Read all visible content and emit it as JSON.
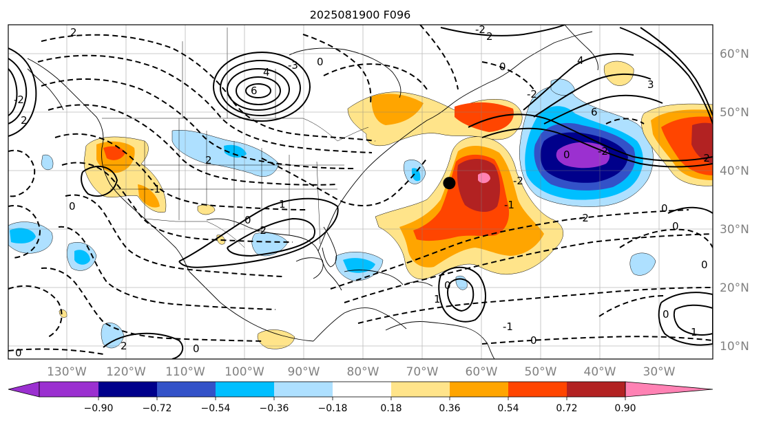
{
  "title": "2025081900 F096",
  "lon_labels": [
    "130°W",
    "120°W",
    "110°W",
    "100°W",
    "90°W",
    "80°W",
    "70°W",
    "60°W",
    "50°W",
    "40°W",
    "30°W"
  ],
  "lat_labels": [
    "60°N",
    "50°N",
    "40°N",
    "30°N",
    "20°N",
    "10°N"
  ],
  "colorbar": {
    "tick_labels": [
      "−0.90",
      "−0.72",
      "−0.54",
      "−0.36",
      "−0.18",
      "0.18",
      "0.36",
      "0.54",
      "0.72",
      "0.90"
    ],
    "colors": {
      "under": "#9b30d0",
      "bins": [
        "#9b30d0",
        "#00008b",
        "#3352c8",
        "#00bfff",
        "#aee0ff",
        "#ffffff",
        "#ffe48a",
        "#ffa500",
        "#ff4500",
        "#b22222"
      ],
      "over": "#ff82b4"
    }
  },
  "contour_labels": [
    "2",
    "-2",
    "2",
    "4",
    "6",
    "-3",
    "0",
    "-2",
    "0",
    "2",
    "-2",
    "4",
    "6",
    "3",
    "0",
    "-2",
    "-1",
    "0",
    "2",
    "0",
    "1",
    "-2",
    "-1",
    "-2",
    "0",
    "0",
    "0",
    "-2",
    "1",
    "0",
    "0",
    "1",
    "0",
    "-1",
    "0",
    "0",
    "2",
    "-2"
  ],
  "marker": {
    "label": "black dot",
    "lon": -65.5,
    "lat": 38
  },
  "chart_data": {
    "type": "contour-map",
    "title": "2025081900 F096",
    "projection": "PlateCarree",
    "lon_range": [
      -140,
      -21
    ],
    "lat_range": [
      8,
      65
    ],
    "fill_levels": [
      -0.9,
      -0.72,
      -0.54,
      -0.36,
      -0.18,
      0.18,
      0.36,
      0.54,
      0.72,
      0.9
    ],
    "colorbar_extend": "both",
    "contour_style": "solid positive, dashed negative, black",
    "positive_anomalies": [
      {
        "name": "western-atlantic max",
        "lon": -62,
        "lat": 38,
        "value": ">0.90"
      },
      {
        "name": "east-atlantic max",
        "lon": -24,
        "lat": 43,
        "value": "0.72-0.90"
      },
      {
        "name": "newfoundland band",
        "lon": -57,
        "lat": 48,
        "value": "0.54-0.90"
      },
      {
        "name": "us southwest",
        "lon": -118,
        "lat": 40,
        "value": "0.36-0.72"
      },
      {
        "name": "great lakes band",
        "lon": -83,
        "lat": 48,
        "value": "0.18-0.54"
      },
      {
        "name": "subtropical tongue",
        "lon": -60,
        "lat": 28,
        "value": "0.18-0.72"
      }
    ],
    "negative_anomalies": [
      {
        "name": "central atlantic min",
        "lon": -43,
        "lat": 41,
        "value": "<-0.90"
      },
      {
        "name": "pacific",
        "lon": -137,
        "lat": 31,
        "value": "-0.36 to -0.54"
      },
      {
        "name": "bahamas",
        "lon": -77,
        "lat": 24,
        "value": "-0.36 to -0.54"
      },
      {
        "name": "plains",
        "lon": -100,
        "lat": 44,
        "value": "-0.18 to -0.54"
      }
    ],
    "marker": {
      "lon": -65.5,
      "lat": 38
    }
  }
}
